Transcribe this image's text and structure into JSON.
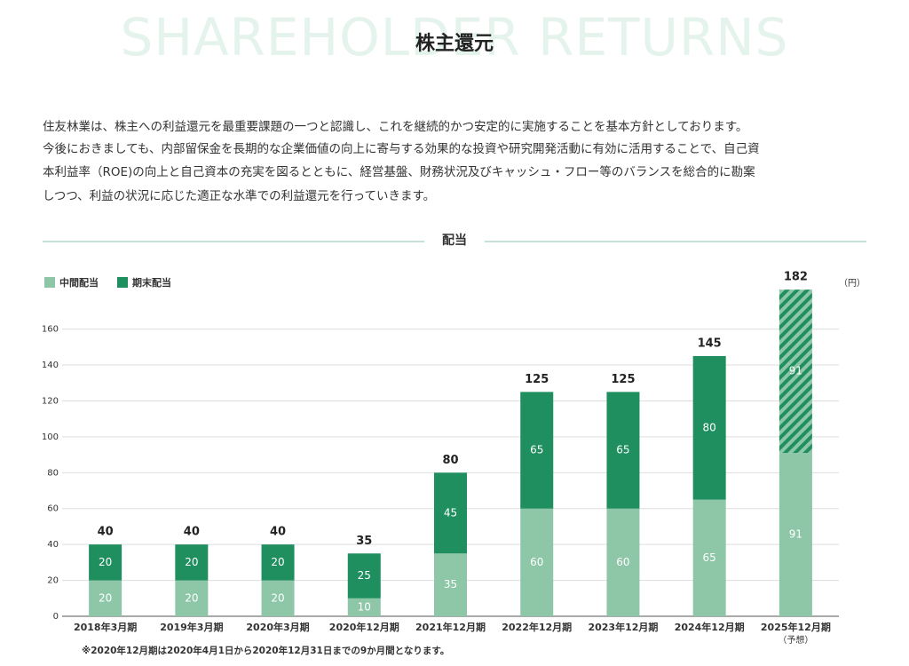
{
  "header": {
    "background_text": "SHAREHOLDER RETURNS",
    "title": "株主還元"
  },
  "intro": [
    "住友林業は、株主への利益還元を最重要課題の一つと認識し、これを継続的かつ安定的に実施することを基本方針としております。",
    "今後におきましても、内部留保金を長期的な企業価値の向上に寄与する効果的な投資や研究開発活動に有効に活用することで、自己資",
    "本利益率（ROE)の向上と自己資本の充実を図るとともに、経営基盤、財務状況及びキャッシュ・フロー等のバランスを総合的に勘案",
    "しつつ、利益の状況に応じた適正な水準での利益還元を行っていきます。"
  ],
  "chart_data": {
    "type": "bar",
    "stacked": true,
    "title": "配当",
    "unit_label": "（円）",
    "categories": [
      "2018年3月期",
      "2019年3月期",
      "2020年3月期",
      "2020年12月期",
      "2021年12月期",
      "2022年12月期",
      "2023年12月期",
      "2024年12月期",
      "2025年12月期"
    ],
    "x_sublabels": [
      null,
      null,
      null,
      null,
      null,
      null,
      null,
      null,
      "（予想）"
    ],
    "series": [
      {
        "name": "中間配当",
        "color": "#8ec6a8",
        "values": [
          20,
          20,
          20,
          10,
          35,
          60,
          60,
          65,
          91
        ]
      },
      {
        "name": "期末配当",
        "color": "#1f8f5f",
        "values": [
          20,
          20,
          20,
          25,
          45,
          65,
          65,
          80,
          91
        ]
      }
    ],
    "totals": [
      40,
      40,
      40,
      35,
      80,
      125,
      125,
      145,
      182
    ],
    "ylim": [
      0,
      190
    ],
    "yticks": [
      0,
      20,
      40,
      60,
      80,
      100,
      120,
      140,
      160
    ],
    "grid": true,
    "legend": "top-left",
    "note": "※2020年12月期は2020年4月1日から2020年12月31日までの9か月間となります。"
  }
}
